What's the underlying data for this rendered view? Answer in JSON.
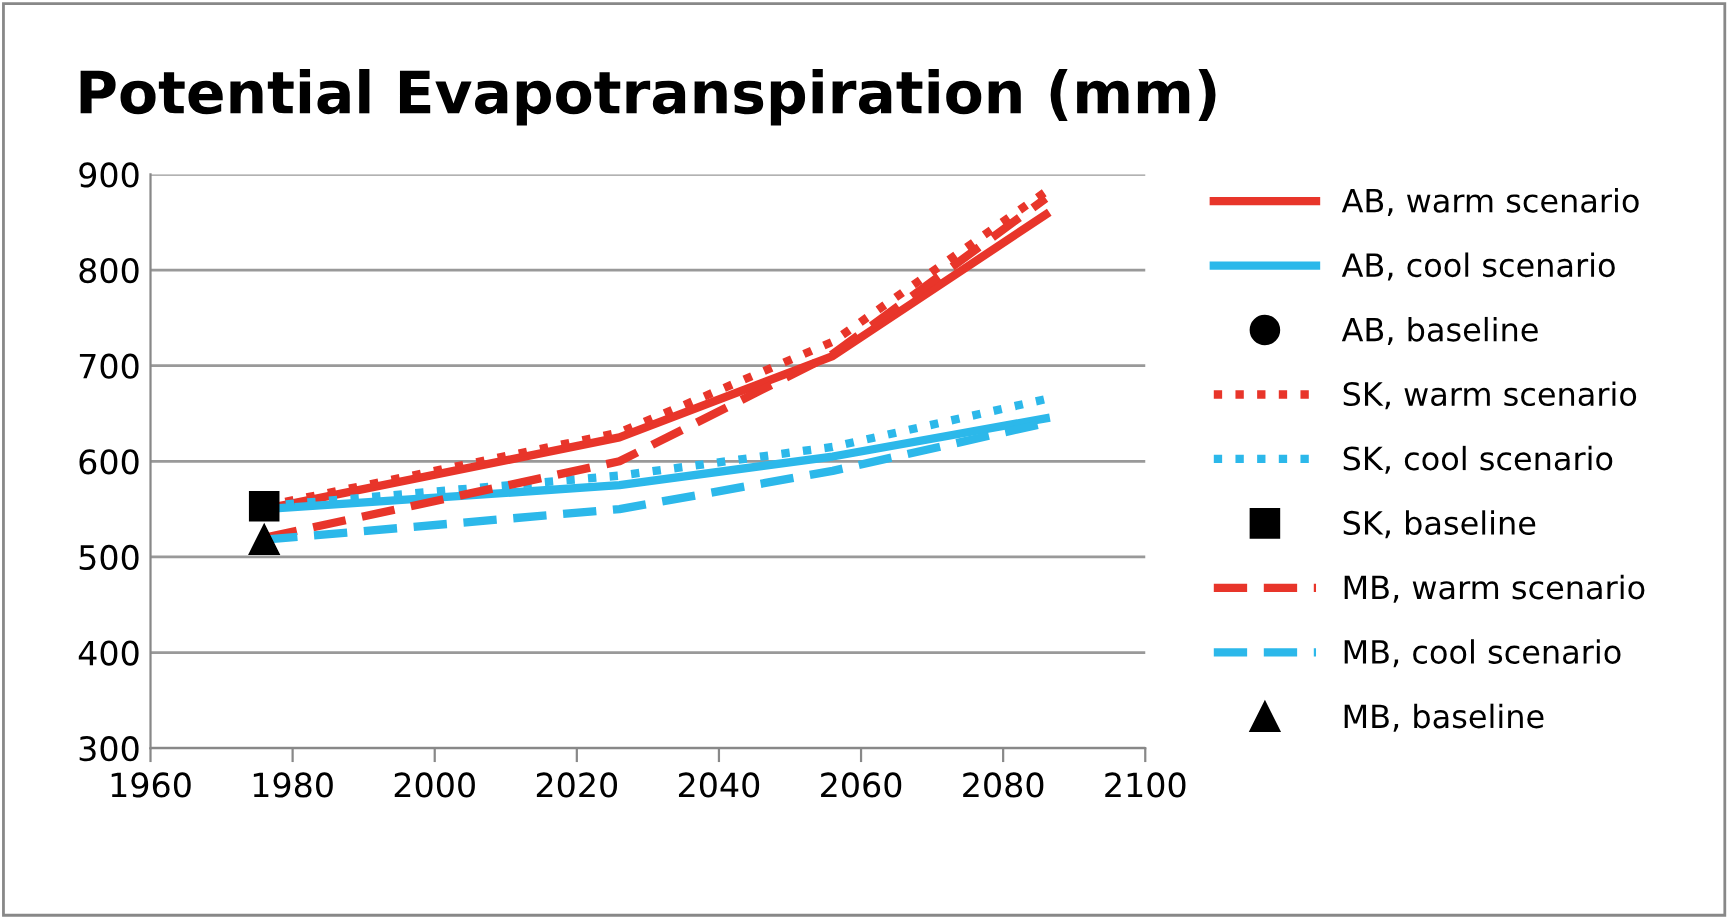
{
  "chart_data": {
    "type": "line",
    "title": "Potential Evapotranspiration (mm)",
    "xlim": [
      1960,
      2100
    ],
    "xticks": [
      1960,
      1980,
      2000,
      2020,
      2040,
      2060,
      2080,
      2100
    ],
    "ylim": [
      300,
      900
    ],
    "yticks": [
      300,
      400,
      500,
      600,
      700,
      800,
      900
    ],
    "grid": "y",
    "legend": "right",
    "series": [
      {
        "name": "AB, warm scenario",
        "color": "#e8352a",
        "line_style": "solid",
        "x": [
          1976,
          2026,
          2056,
          2086
        ],
        "values": [
          550,
          625,
          710,
          858
        ]
      },
      {
        "name": "AB, cool scenario",
        "color": "#2cb8ea",
        "line_style": "solid",
        "x": [
          1976,
          2026,
          2056,
          2086
        ],
        "values": [
          550,
          575,
          605,
          645
        ]
      },
      {
        "name": "AB, baseline",
        "type": "scatter",
        "marker": "circle",
        "color": "#000000"
      },
      {
        "name": "SK, warm scenario",
        "color": "#e8352a",
        "line_style": "dotted",
        "x": [
          1976,
          2026,
          2056,
          2086
        ],
        "values": [
          553,
          630,
          725,
          882
        ]
      },
      {
        "name": "SK, cool scenario",
        "color": "#2cb8ea",
        "line_style": "dotted",
        "x": [
          1976,
          2026,
          2056,
          2086
        ],
        "values": [
          553,
          585,
          615,
          665
        ]
      },
      {
        "name": "SK, baseline",
        "type": "scatter",
        "marker": "square",
        "color": "#000000",
        "x": [
          1976
        ],
        "values": [
          553
        ]
      },
      {
        "name": "MB, warm scenario",
        "color": "#e8352a",
        "line_style": "dashed",
        "x": [
          1976,
          2026,
          2056,
          2086
        ],
        "values": [
          520,
          600,
          712,
          875
        ]
      },
      {
        "name": "MB, cool scenario",
        "color": "#2cb8ea",
        "line_style": "dashed",
        "x": [
          1976,
          2026,
          2056,
          2086
        ],
        "values": [
          518,
          550,
          590,
          640
        ]
      },
      {
        "name": "MB, baseline",
        "type": "scatter",
        "marker": "triangle",
        "color": "#000000",
        "x": [
          1976
        ],
        "values": [
          518
        ]
      }
    ]
  }
}
